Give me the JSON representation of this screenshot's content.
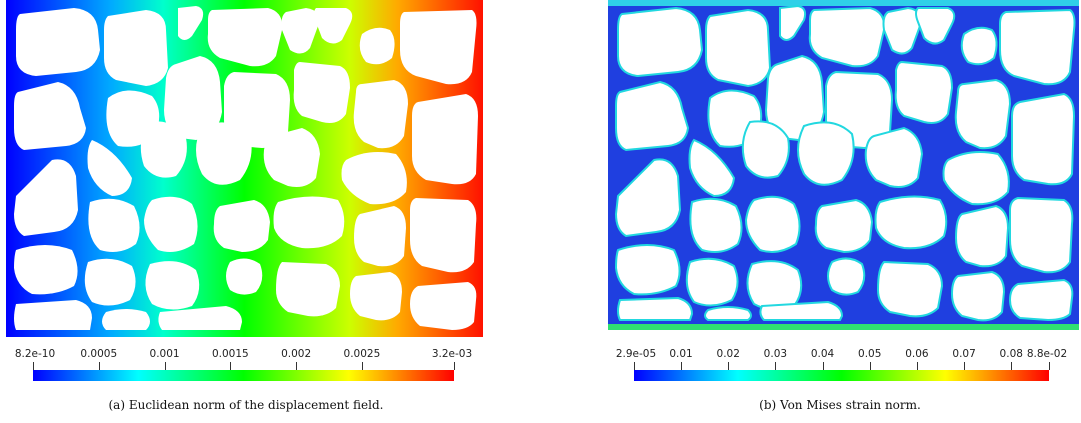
{
  "figure_a": {
    "caption": "(a) Euclidean norm of the displacement field.",
    "colorbar": {
      "tick_labels": [
        "8.2e-10",
        "0.0005",
        "0.001",
        "0.0015",
        "0.002",
        "0.0025",
        "3.2e-03"
      ],
      "tick_values": [
        0,
        0.0005,
        0.001,
        0.0015,
        0.002,
        0.0025,
        0.0032
      ],
      "min": 0,
      "max": 0.0032,
      "colormap": [
        "#0000ff",
        "#00ffff",
        "#00ff00",
        "#ffff00",
        "#ff0000"
      ]
    }
  },
  "figure_b": {
    "caption": "(b) Von Mises strain norm.",
    "colorbar": {
      "tick_labels": [
        "2.9e-05",
        "0.01",
        "0.02",
        "0.03",
        "0.04",
        "0.05",
        "0.06",
        "0.07",
        "0.08",
        "8.8e-02"
      ],
      "tick_values": [
        2.9e-05,
        0.01,
        0.02,
        0.03,
        0.04,
        0.05,
        0.06,
        0.07,
        0.08,
        0.088
      ],
      "min": 2.9e-05,
      "max": 0.088,
      "colormap": [
        "#0000ff",
        "#00ffff",
        "#00ff00",
        "#ffff00",
        "#ff0000"
      ]
    }
  },
  "colors": {
    "field_b_base": "#1f3fe0",
    "edge_highlight": "#22d8e0"
  }
}
